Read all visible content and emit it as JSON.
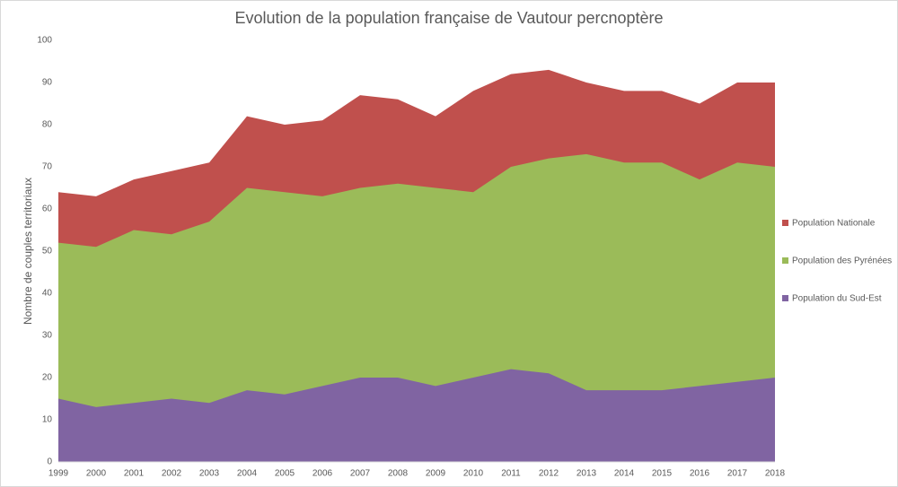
{
  "chart_data": {
    "type": "area",
    "title": "Evolution de la population française de Vautour percnoptère",
    "y_label": "Nombre de couples territoriaux",
    "categories": [
      "1999",
      "2000",
      "2001",
      "2002",
      "2003",
      "2004",
      "2005",
      "2006",
      "2007",
      "2008",
      "2009",
      "2010",
      "2011",
      "2012",
      "2013",
      "2014",
      "2015",
      "2016",
      "2017",
      "2018"
    ],
    "series": [
      {
        "name": "Population Nationale",
        "color": "#c0504d",
        "values": [
          64,
          63,
          67,
          69,
          71,
          82,
          80,
          81,
          87,
          86,
          82,
          88,
          92,
          93,
          90,
          88,
          88,
          85,
          90,
          90
        ]
      },
      {
        "name": "Population des Pyrénées",
        "color": "#9bbb59",
        "values": [
          52,
          51,
          55,
          54,
          57,
          65,
          64,
          63,
          65,
          66,
          65,
          64,
          70,
          72,
          73,
          71,
          71,
          67,
          71,
          70
        ]
      },
      {
        "name": "Population du Sud-Est",
        "color": "#8064a2",
        "values": [
          15,
          13,
          14,
          15,
          14,
          17,
          16,
          18,
          20,
          20,
          18,
          20,
          22,
          21,
          17,
          17,
          17,
          18,
          19,
          20
        ]
      }
    ],
    "ylim": [
      0,
      100
    ],
    "yticks": [
      0,
      10,
      20,
      30,
      40,
      50,
      60,
      70,
      80,
      90,
      100
    ],
    "grid": false,
    "legend": "right"
  }
}
